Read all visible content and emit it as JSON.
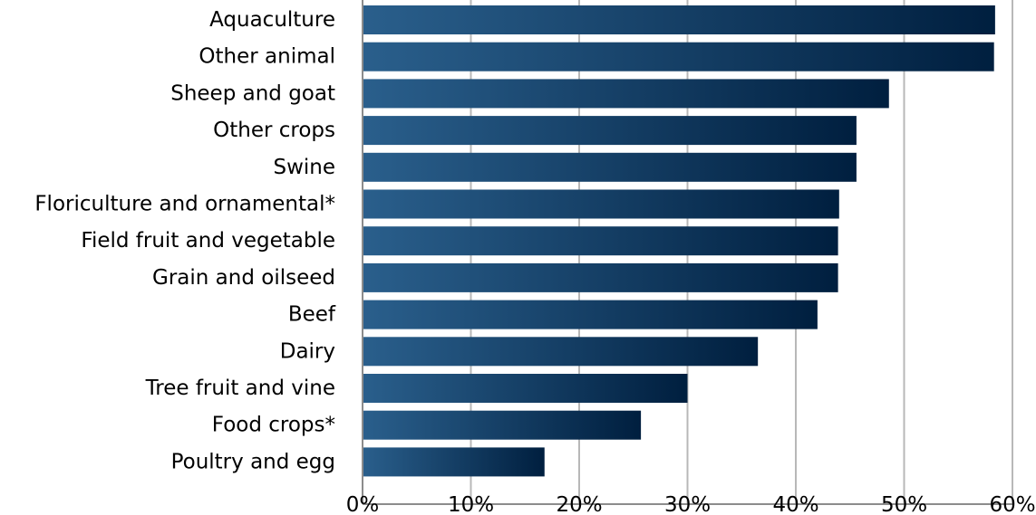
{
  "chart_data": {
    "type": "bar",
    "orientation": "horizontal",
    "categories": [
      "Aquaculture",
      "Other animal",
      "Sheep and goat",
      "Other crops",
      "Swine",
      "Floriculture and ornamental*",
      "Field fruit and vegetable",
      "Grain and oilseed",
      "Beef",
      "Dairy",
      "Tree fruit and vine",
      "Food crops*",
      "Poultry and egg"
    ],
    "values": [
      58.4,
      58.3,
      48.6,
      45.6,
      45.6,
      44.0,
      43.9,
      43.9,
      42.0,
      36.5,
      30.0,
      25.7,
      16.8
    ],
    "title": "",
    "xlabel": "",
    "ylabel": "",
    "xlim": [
      0,
      60
    ],
    "x_ticks": [
      "0%",
      "10%",
      "20%",
      "30%",
      "40%",
      "50%",
      "60%"
    ],
    "grid": "vertical",
    "legend": "none",
    "colors": {
      "bar_start": "#2a5f8c",
      "bar_end": "#001f3f",
      "grid": "#b8b8b8",
      "axis": "#8c8c8c"
    }
  }
}
